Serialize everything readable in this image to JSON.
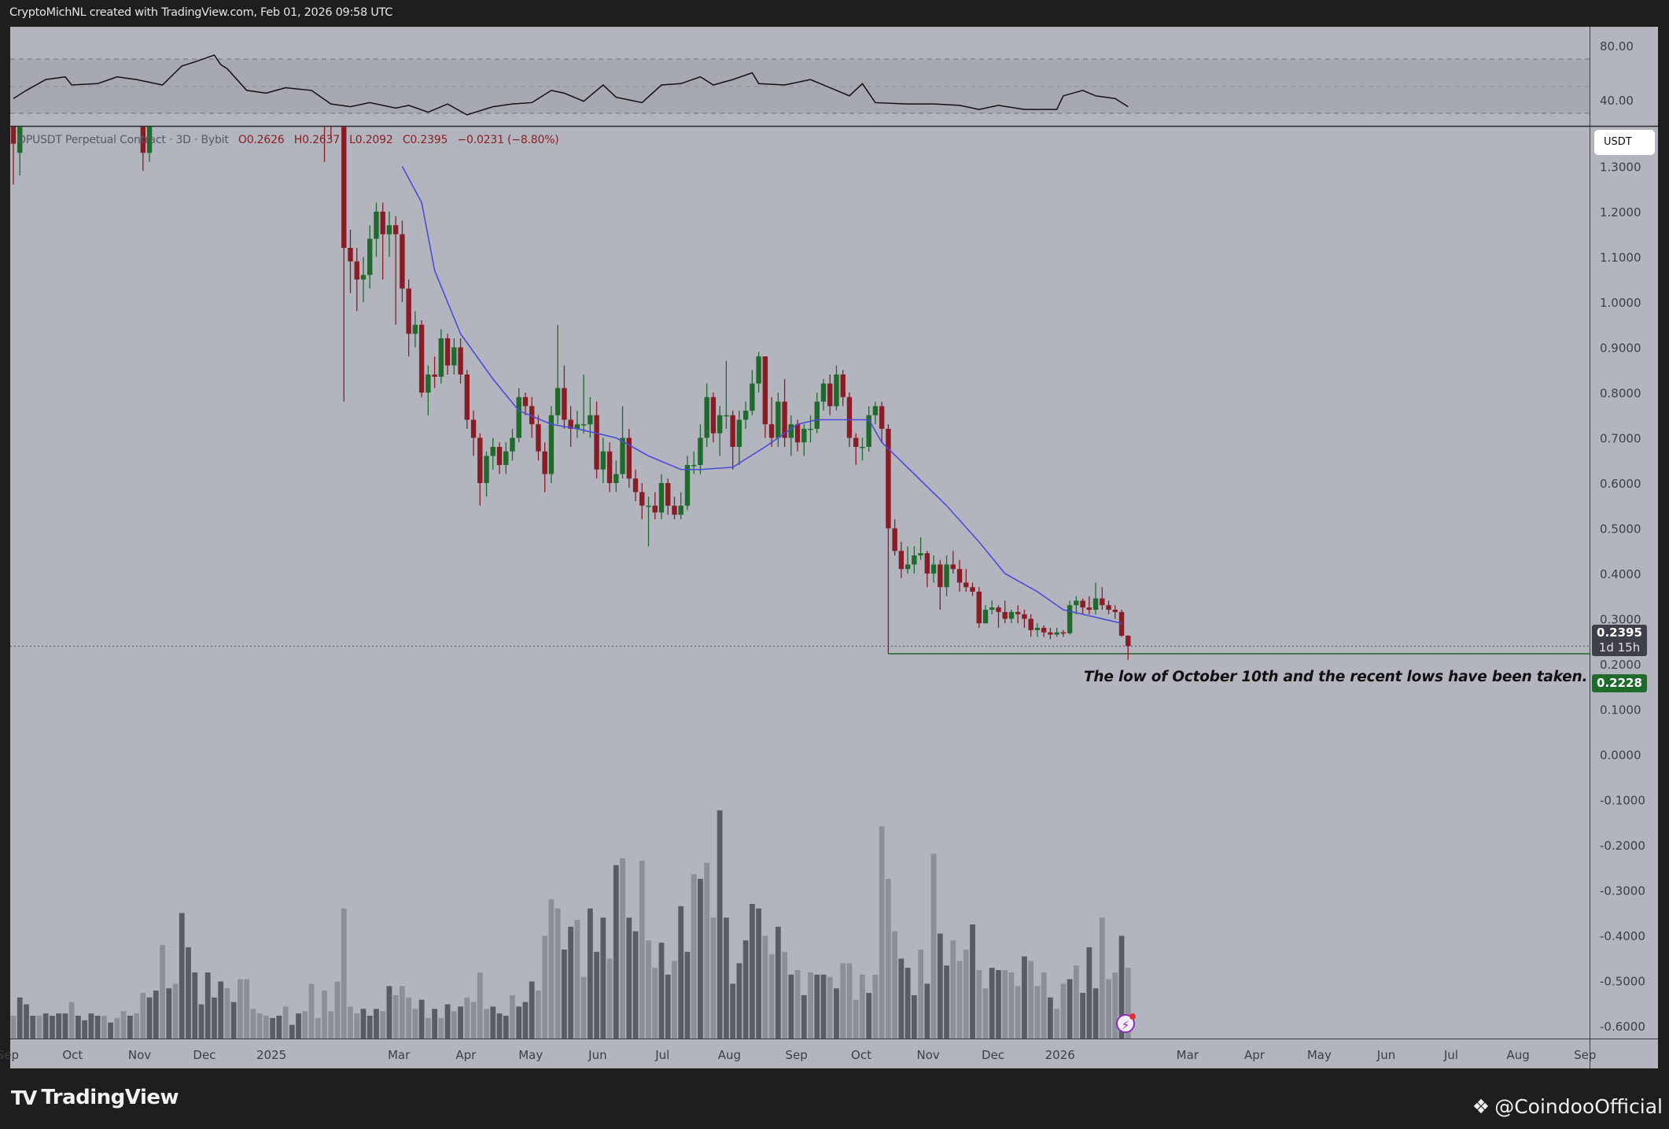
{
  "header": {
    "text": "CryptoMichNL created with TradingView.com, Feb 01, 2026 09:58 UTC"
  },
  "legend": {
    "symbol": "OPUSDT Perpetual Contract · 3D · Bybit",
    "open": "O0.2626",
    "high": "H0.2637",
    "low": "L0.2092",
    "close": "C0.2395",
    "change": "−0.0231 (−8.80%)"
  },
  "price_axis": {
    "currency": "USDT",
    "ticks": [
      "1.3000",
      "1.2000",
      "1.1000",
      "1.0000",
      "0.9000",
      "0.8000",
      "0.7000",
      "0.6000",
      "0.5000",
      "0.4000",
      "0.3000",
      "0.2000",
      "0.1000",
      "0.0000",
      "-0.1000",
      "-0.2000",
      "-0.3000",
      "-0.4000",
      "-0.5000",
      "-0.6000"
    ],
    "last_price": "0.2395",
    "countdown": "1d 15h",
    "level_price": "0.2228"
  },
  "rsi_axis": {
    "ticks": [
      "80.00",
      "40.00"
    ]
  },
  "time_axis": {
    "ticks": [
      {
        "label": "Sep",
        "date": "2024-09-01"
      },
      {
        "label": "Oct",
        "date": "2024-10-01"
      },
      {
        "label": "Nov",
        "date": "2024-11-01"
      },
      {
        "label": "Dec",
        "date": "2024-12-01"
      },
      {
        "label": "2025",
        "date": "2025-01-01"
      },
      {
        "label": "Mar",
        "date": "2025-03-01"
      },
      {
        "label": "Apr",
        "date": "2025-04-01"
      },
      {
        "label": "May",
        "date": "2025-05-01"
      },
      {
        "label": "Jun",
        "date": "2025-06-01"
      },
      {
        "label": "Jul",
        "date": "2025-07-01"
      },
      {
        "label": "Aug",
        "date": "2025-08-01"
      },
      {
        "label": "Sep",
        "date": "2025-09-01"
      },
      {
        "label": "Oct",
        "date": "2025-10-01"
      },
      {
        "label": "Nov",
        "date": "2025-11-01"
      },
      {
        "label": "Dec",
        "date": "2025-12-01"
      },
      {
        "label": "2026",
        "date": "2026-01-01"
      },
      {
        "label": "Mar",
        "date": "2026-03-01"
      },
      {
        "label": "Apr",
        "date": "2026-04-01"
      },
      {
        "label": "May",
        "date": "2026-05-01"
      },
      {
        "label": "Jun",
        "date": "2026-06-01"
      },
      {
        "label": "Jul",
        "date": "2026-07-01"
      },
      {
        "label": "Aug",
        "date": "2026-08-01"
      },
      {
        "label": "Sep",
        "date": "2026-09-01"
      }
    ]
  },
  "annotation": {
    "text": "The low of October 10th and the recent lows have been taken.",
    "level": 0.2228,
    "from_bar": 135
  },
  "colors": {
    "up": "#1f6b2c",
    "down": "#8a1c25",
    "ma": "#4b4bd8",
    "volume_dark": "#5a5c64",
    "volume_light": "#8d8f98",
    "background": "#b2b5be",
    "level_line": "#2f6a34"
  },
  "chart_data": {
    "type": "candlestick",
    "timeframe": "3D",
    "ylim": [
      -0.6,
      1.3
    ],
    "candles_ohlc": [
      [
        1.45,
        1.5,
        1.26,
        1.35
      ],
      [
        1.33,
        1.45,
        1.28,
        1.4
      ],
      null,
      null,
      null,
      null,
      null,
      null,
      null,
      null,
      null,
      null,
      null,
      null,
      null,
      null,
      null,
      null,
      null,
      null,
      [
        1.45,
        1.5,
        1.29,
        1.33
      ],
      [
        1.33,
        1.45,
        1.31,
        1.4
      ],
      null,
      null,
      null,
      null,
      null,
      null,
      null,
      null,
      null,
      null,
      null,
      null,
      null,
      null,
      null,
      null,
      null,
      null,
      null,
      null,
      null,
      null,
      null,
      null,
      null,
      null,
      [
        1.52,
        1.55,
        1.31,
        1.48
      ],
      [
        1.48,
        1.52,
        1.36,
        1.45
      ],
      null,
      [
        1.4,
        1.45,
        0.78,
        1.12
      ],
      [
        1.12,
        1.16,
        1.02,
        1.09
      ],
      [
        1.09,
        1.12,
        0.98,
        1.05
      ],
      [
        1.05,
        1.1,
        1.0,
        1.06
      ],
      [
        1.06,
        1.17,
        1.03,
        1.14
      ],
      [
        1.14,
        1.22,
        1.1,
        1.2
      ],
      [
        1.2,
        1.22,
        1.05,
        1.15
      ],
      [
        1.15,
        1.2,
        1.1,
        1.17
      ],
      [
        1.17,
        1.19,
        0.95,
        1.15
      ],
      [
        1.15,
        1.18,
        1.0,
        1.03
      ],
      [
        1.03,
        1.05,
        0.88,
        0.93
      ],
      [
        0.93,
        0.98,
        0.9,
        0.95
      ],
      [
        0.95,
        0.96,
        0.79,
        0.8
      ],
      [
        0.8,
        0.86,
        0.75,
        0.84
      ],
      [
        0.84,
        0.88,
        0.81,
        0.835
      ],
      [
        0.835,
        0.94,
        0.82,
        0.92
      ],
      [
        0.92,
        0.93,
        0.84,
        0.86
      ],
      [
        0.86,
        0.92,
        0.84,
        0.9
      ],
      [
        0.9,
        0.92,
        0.82,
        0.84
      ],
      [
        0.84,
        0.85,
        0.72,
        0.74
      ],
      [
        0.74,
        0.76,
        0.66,
        0.7
      ],
      [
        0.7,
        0.71,
        0.55,
        0.6
      ],
      [
        0.6,
        0.67,
        0.57,
        0.66
      ],
      [
        0.66,
        0.7,
        0.63,
        0.68
      ],
      [
        0.68,
        0.69,
        0.62,
        0.64
      ],
      [
        0.64,
        0.69,
        0.62,
        0.67
      ],
      [
        0.67,
        0.72,
        0.65,
        0.7
      ],
      [
        0.7,
        0.81,
        0.69,
        0.79
      ],
      [
        0.79,
        0.8,
        0.75,
        0.77
      ],
      [
        0.77,
        0.79,
        0.7,
        0.73
      ],
      [
        0.73,
        0.75,
        0.65,
        0.67
      ],
      [
        0.67,
        0.69,
        0.58,
        0.62
      ],
      [
        0.62,
        0.77,
        0.6,
        0.75
      ],
      [
        0.75,
        0.95,
        0.73,
        0.81
      ],
      [
        0.81,
        0.86,
        0.72,
        0.74
      ],
      [
        0.74,
        0.77,
        0.68,
        0.72
      ],
      [
        0.72,
        0.76,
        0.7,
        0.73
      ],
      [
        0.73,
        0.84,
        0.71,
        0.73
      ],
      [
        0.73,
        0.79,
        0.7,
        0.75
      ],
      [
        0.75,
        0.78,
        0.61,
        0.63
      ],
      [
        0.63,
        0.7,
        0.6,
        0.67
      ],
      [
        0.67,
        0.69,
        0.58,
        0.6
      ],
      [
        0.6,
        0.65,
        0.58,
        0.62
      ],
      [
        0.62,
        0.77,
        0.61,
        0.7
      ],
      [
        0.7,
        0.72,
        0.59,
        0.61
      ],
      [
        0.61,
        0.63,
        0.56,
        0.58
      ],
      [
        0.58,
        0.6,
        0.52,
        0.55
      ],
      [
        0.55,
        0.57,
        0.46,
        0.55
      ],
      [
        0.55,
        0.58,
        0.52,
        0.535
      ],
      [
        0.535,
        0.62,
        0.52,
        0.6
      ],
      [
        0.6,
        0.61,
        0.53,
        0.55
      ],
      [
        0.55,
        0.57,
        0.52,
        0.53
      ],
      [
        0.53,
        0.58,
        0.52,
        0.55
      ],
      [
        0.55,
        0.66,
        0.54,
        0.64
      ],
      [
        0.64,
        0.67,
        0.62,
        0.64
      ],
      [
        0.64,
        0.73,
        0.62,
        0.7
      ],
      [
        0.7,
        0.82,
        0.68,
        0.79
      ],
      [
        0.79,
        0.8,
        0.69,
        0.71
      ],
      [
        0.71,
        0.77,
        0.66,
        0.75
      ],
      [
        0.75,
        0.87,
        0.72,
        0.75
      ],
      [
        0.75,
        0.76,
        0.63,
        0.68
      ],
      [
        0.68,
        0.76,
        0.64,
        0.74
      ],
      [
        0.74,
        0.78,
        0.72,
        0.76
      ],
      [
        0.76,
        0.85,
        0.75,
        0.82
      ],
      [
        0.82,
        0.89,
        0.8,
        0.88
      ],
      [
        0.88,
        0.88,
        0.7,
        0.73
      ],
      [
        0.73,
        0.79,
        0.68,
        0.7
      ],
      [
        0.7,
        0.8,
        0.68,
        0.78
      ],
      [
        0.78,
        0.83,
        0.68,
        0.7
      ],
      [
        0.7,
        0.75,
        0.66,
        0.73
      ],
      [
        0.73,
        0.74,
        0.67,
        0.69
      ],
      [
        0.69,
        0.73,
        0.66,
        0.72
      ],
      [
        0.72,
        0.75,
        0.69,
        0.72
      ],
      [
        0.72,
        0.8,
        0.71,
        0.78
      ],
      [
        0.78,
        0.83,
        0.76,
        0.82
      ],
      [
        0.82,
        0.84,
        0.75,
        0.77
      ],
      [
        0.77,
        0.86,
        0.76,
        0.84
      ],
      [
        0.84,
        0.85,
        0.77,
        0.79
      ],
      [
        0.79,
        0.8,
        0.68,
        0.7
      ],
      [
        0.7,
        0.71,
        0.64,
        0.68
      ],
      [
        0.68,
        0.7,
        0.65,
        0.68
      ],
      [
        0.68,
        0.77,
        0.67,
        0.75
      ],
      [
        0.75,
        0.78,
        0.73,
        0.77
      ],
      [
        0.77,
        0.78,
        0.69,
        0.72
      ],
      [
        0.72,
        0.73,
        0.2228,
        0.5
      ],
      [
        0.5,
        0.52,
        0.44,
        0.45
      ],
      [
        0.45,
        0.47,
        0.39,
        0.41
      ],
      [
        0.41,
        0.46,
        0.4,
        0.42
      ],
      [
        0.42,
        0.46,
        0.4,
        0.44
      ],
      [
        0.44,
        0.48,
        0.43,
        0.445
      ],
      [
        0.445,
        0.45,
        0.37,
        0.4
      ],
      [
        0.4,
        0.44,
        0.38,
        0.42
      ],
      [
        0.42,
        0.43,
        0.32,
        0.37
      ],
      [
        0.37,
        0.44,
        0.35,
        0.42
      ],
      [
        0.42,
        0.45,
        0.4,
        0.41
      ],
      [
        0.41,
        0.43,
        0.36,
        0.38
      ],
      [
        0.38,
        0.41,
        0.36,
        0.37
      ],
      [
        0.37,
        0.38,
        0.35,
        0.36
      ],
      [
        0.36,
        0.37,
        0.28,
        0.29
      ],
      [
        0.29,
        0.33,
        0.29,
        0.32
      ],
      [
        0.32,
        0.34,
        0.31,
        0.325
      ],
      [
        0.325,
        0.33,
        0.28,
        0.315
      ],
      [
        0.315,
        0.34,
        0.29,
        0.3
      ],
      [
        0.3,
        0.32,
        0.29,
        0.315
      ],
      [
        0.315,
        0.33,
        0.29,
        0.31
      ],
      [
        0.31,
        0.32,
        0.28,
        0.3
      ],
      [
        0.3,
        0.31,
        0.26,
        0.275
      ],
      [
        0.275,
        0.29,
        0.26,
        0.28
      ],
      [
        0.28,
        0.285,
        0.26,
        0.27
      ],
      [
        0.27,
        0.28,
        0.255,
        0.265
      ],
      [
        0.265,
        0.28,
        0.26,
        0.27
      ],
      [
        0.27,
        0.275,
        0.26,
        0.268
      ],
      [
        0.268,
        0.34,
        0.265,
        0.33
      ],
      [
        0.33,
        0.35,
        0.31,
        0.34
      ],
      [
        0.34,
        0.345,
        0.31,
        0.325
      ],
      [
        0.325,
        0.35,
        0.31,
        0.32
      ],
      [
        0.32,
        0.38,
        0.31,
        0.345
      ],
      [
        0.345,
        0.37,
        0.32,
        0.33
      ],
      [
        0.33,
        0.34,
        0.31,
        0.32
      ],
      [
        0.32,
        0.33,
        0.3,
        0.315
      ],
      [
        0.315,
        0.32,
        0.26,
        0.2626
      ],
      [
        0.2626,
        0.2637,
        0.2092,
        0.2395
      ]
    ],
    "moving_average": [
      [
        60,
        1.3
      ],
      [
        63,
        1.22
      ],
      [
        65,
        1.07
      ],
      [
        69,
        0.93
      ],
      [
        74,
        0.83
      ],
      [
        78,
        0.76
      ],
      [
        83,
        0.73
      ],
      [
        87,
        0.72
      ],
      [
        93,
        0.7
      ],
      [
        98,
        0.66
      ],
      [
        103,
        0.63
      ],
      [
        106,
        0.63
      ],
      [
        111,
        0.635
      ],
      [
        116,
        0.68
      ],
      [
        121,
        0.73
      ],
      [
        124,
        0.74
      ],
      [
        129,
        0.74
      ],
      [
        132,
        0.74
      ],
      [
        134,
        0.69
      ],
      [
        139,
        0.62
      ],
      [
        144,
        0.55
      ],
      [
        149,
        0.47
      ],
      [
        153,
        0.4
      ],
      [
        158,
        0.36
      ],
      [
        162,
        0.32
      ],
      [
        165,
        0.31
      ],
      [
        171,
        0.29
      ]
    ],
    "rsi": {
      "levels": [
        70,
        50,
        30
      ],
      "ylim": [
        30,
        80
      ],
      "values": [
        [
          0,
          41
        ],
        [
          2,
          47
        ],
        [
          5,
          55
        ],
        [
          8,
          57
        ],
        [
          9,
          51
        ],
        [
          13,
          52
        ],
        [
          16,
          57
        ],
        [
          19,
          55
        ],
        [
          23,
          51
        ],
        [
          26,
          65
        ],
        [
          28,
          68
        ],
        [
          31,
          73
        ],
        [
          32,
          66
        ],
        [
          33,
          63
        ],
        [
          36,
          47
        ],
        [
          39,
          45
        ],
        [
          42,
          49
        ],
        [
          46,
          47
        ],
        [
          49,
          37
        ],
        [
          52,
          35
        ],
        [
          55,
          38
        ],
        [
          59,
          34
        ],
        [
          61,
          36
        ],
        [
          64,
          31
        ],
        [
          67,
          37
        ],
        [
          70,
          29
        ],
        [
          74,
          35
        ],
        [
          77,
          37
        ],
        [
          80,
          38
        ],
        [
          83,
          47
        ],
        [
          85,
          45
        ],
        [
          88,
          39
        ],
        [
          91,
          51
        ],
        [
          93,
          42
        ],
        [
          97,
          38
        ],
        [
          100,
          51
        ],
        [
          103,
          52
        ],
        [
          106,
          57
        ],
        [
          108,
          51
        ],
        [
          111,
          55
        ],
        [
          114,
          60
        ],
        [
          115,
          52
        ],
        [
          119,
          51
        ],
        [
          123,
          55
        ],
        [
          126,
          49
        ],
        [
          129,
          43
        ],
        [
          131,
          52
        ],
        [
          133,
          38
        ],
        [
          138,
          37
        ],
        [
          142,
          37
        ],
        [
          146,
          36
        ],
        [
          149,
          33
        ],
        [
          152,
          36
        ],
        [
          156,
          33
        ],
        [
          161,
          33
        ],
        [
          162,
          43
        ],
        [
          165,
          47
        ],
        [
          167,
          43
        ],
        [
          170,
          41
        ],
        [
          172,
          35
        ]
      ]
    },
    "volume_relative": [
      10,
      18,
      15,
      10,
      10,
      11,
      10,
      11,
      11,
      16,
      10,
      8,
      11,
      10,
      10,
      7,
      9,
      12,
      10,
      11,
      20,
      18,
      21,
      41,
      22,
      24,
      55,
      40,
      29,
      15,
      29,
      18,
      25,
      22,
      16,
      26,
      26,
      13,
      11,
      10,
      9,
      10,
      14,
      6,
      11,
      12,
      24,
      9,
      21,
      12,
      25,
      57,
      14,
      11,
      13,
      10,
      13,
      12,
      23,
      19,
      23,
      18,
      13,
      17,
      9,
      13,
      9,
      15,
      12,
      14,
      18,
      16,
      29,
      13,
      14,
      11,
      10,
      19,
      14,
      16,
      25,
      21,
      45,
      61,
      57,
      39,
      49,
      52,
      27,
      57,
      38,
      53,
      35,
      76,
      79,
      53,
      47,
      78,
      43,
      31,
      42,
      28,
      34,
      58,
      38,
      72,
      70,
      77,
      53,
      100,
      53,
      24,
      33,
      43,
      59,
      57,
      45,
      37,
      49,
      38,
      28,
      30,
      19,
      29,
      28,
      28,
      27,
      22,
      33,
      33,
      17,
      28,
      20,
      28,
      93,
      70,
      47,
      35,
      31,
      19,
      39,
      24,
      81,
      46,
      32,
      43,
      34,
      39,
      50,
      30,
      22,
      31,
      30,
      30,
      29,
      23,
      36,
      34,
      23,
      29,
      18,
      13,
      24,
      26,
      32,
      20,
      40,
      22,
      53,
      26,
      29,
      45,
      31
    ],
    "volume_shade": "ldddlddddlddddldlldllddldldddddddldlllllddlddllllllllldddldlllldldldldlllldddldddllllddlldddldlddlllddlddldlldddddddlldldldlddldlllldlllldddldlddllldllddllldllldlldldddllldllllll"
  },
  "footer": {
    "brand": "TradingView",
    "credit": "@CoindooOfficial"
  }
}
